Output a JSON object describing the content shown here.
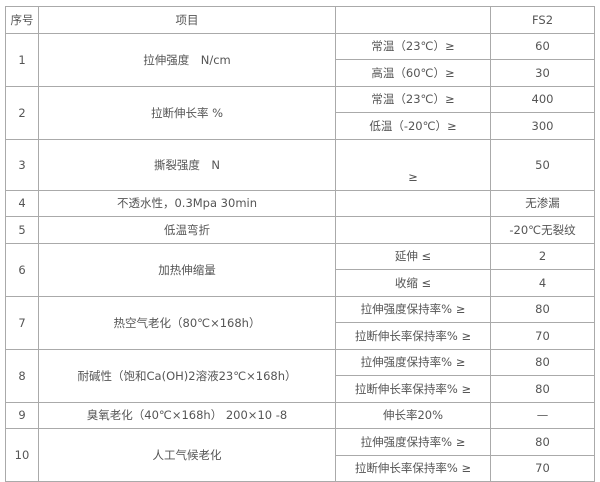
{
  "header": {
    "no": "序号",
    "item": "项目",
    "condition": "",
    "fs2": "FS2"
  },
  "rows": [
    {
      "no": "1",
      "item": "拉伸强度　N/cm",
      "subs": [
        {
          "cond": "常温（23℃）≥",
          "val": "60"
        },
        {
          "cond": "高温（60℃）≥",
          "val": "30"
        }
      ]
    },
    {
      "no": "2",
      "item": "拉断伸长率 %",
      "subs": [
        {
          "cond": "常温（23℃）≥",
          "val": "400"
        },
        {
          "cond": "低温（-20℃）≥",
          "val": "300"
        }
      ]
    },
    {
      "no": "3",
      "item": "撕裂强度　N",
      "subs": [
        {
          "cond": "≥",
          "val": "50"
        }
      ]
    },
    {
      "no": "4",
      "item": "不透水性，0.3Mpa 30min",
      "subs": [
        {
          "cond": "",
          "val": "无渗漏"
        }
      ]
    },
    {
      "no": "5",
      "item": "低温弯折",
      "subs": [
        {
          "cond": "",
          "val": "-20℃无裂纹"
        }
      ]
    },
    {
      "no": "6",
      "item": "加热伸缩量",
      "subs": [
        {
          "cond": "延伸 ≤",
          "val": "2"
        },
        {
          "cond": "收缩 ≤",
          "val": "4"
        }
      ]
    },
    {
      "no": "7",
      "item": "热空气老化（80℃×168h）",
      "subs": [
        {
          "cond": "拉伸强度保持率% ≥",
          "val": "80"
        },
        {
          "cond": "拉断伸长率保持率% ≥",
          "val": "70"
        }
      ]
    },
    {
      "no": "8",
      "item": "耐碱性（饱和Ca(OH)2溶液23℃×168h）",
      "subs": [
        {
          "cond": "拉伸强度保持率% ≥",
          "val": "80"
        },
        {
          "cond": "拉断伸长率保持率%  ≥",
          "val": "80"
        }
      ]
    },
    {
      "no": "9",
      "item": "臭氧老化（40℃×168h） 200×10 -8",
      "subs": [
        {
          "cond": "伸长率20%",
          "val": "—"
        }
      ]
    },
    {
      "no": "10",
      "item": "人工气候老化",
      "subs": [
        {
          "cond": "拉伸强度保持率% ≥",
          "val": "80"
        },
        {
          "cond": "拉断伸长率保持率%  ≥",
          "val": "70"
        }
      ]
    }
  ]
}
